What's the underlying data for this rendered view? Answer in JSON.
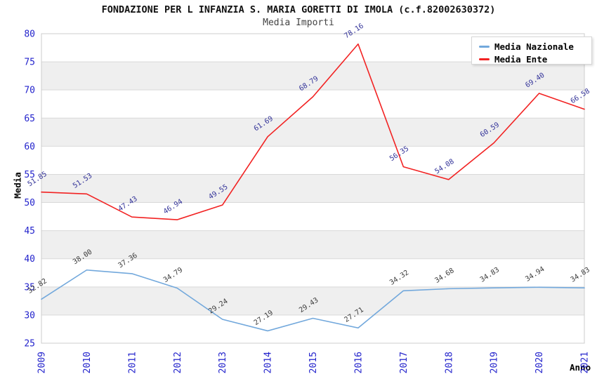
{
  "header": {
    "title": "FONDAZIONE PER L INFANZIA S. MARIA GORETTI DI IMOLA (c.f.82002630372)",
    "subtitle": "Media Importi"
  },
  "axes": {
    "y_title": "Media",
    "x_title": "Anno"
  },
  "legend": {
    "position": "top-right",
    "items": [
      {
        "label": "Media Nazionale",
        "color": "#72a8dc"
      },
      {
        "label": "Media Ente",
        "color": "#f22222"
      }
    ]
  },
  "chart_data": {
    "type": "line",
    "title": "FONDAZIONE PER L INFANZIA S. MARIA GORETTI DI IMOLA (c.f.82002630372)",
    "subtitle": "Media Importi",
    "xlabel": "Anno",
    "ylabel": "Media",
    "categories": [
      "2009",
      "2010",
      "2011",
      "2012",
      "2013",
      "2014",
      "2015",
      "2016",
      "2017",
      "2018",
      "2019",
      "2020",
      "2021"
    ],
    "series": [
      {
        "name": "Media Nazionale",
        "color": "#72a8dc",
        "label_color": "#3c3c3c",
        "values": [
          32.82,
          38.0,
          37.36,
          34.79,
          29.24,
          27.19,
          29.43,
          27.71,
          34.32,
          34.68,
          34.83,
          34.94,
          34.83
        ]
      },
      {
        "name": "Media Ente",
        "color": "#f22222",
        "label_color": "#333399",
        "values": [
          51.85,
          51.53,
          47.43,
          46.94,
          49.55,
          61.69,
          68.79,
          78.16,
          56.35,
          54.08,
          60.59,
          69.4,
          66.58
        ]
      }
    ],
    "ylim": [
      25,
      80
    ],
    "y_ticks": [
      25,
      30,
      35,
      40,
      45,
      50,
      55,
      60,
      65,
      70,
      75,
      80
    ],
    "y_tick_step": 5,
    "legend_position": "top-right",
    "grid": "horizontal-bands",
    "band_fill": "#efefef",
    "grid_color": "#d9d9d9",
    "border_color": "#cccccc",
    "tick_label_color": "#2323cc",
    "value_label_decimals": 2
  }
}
